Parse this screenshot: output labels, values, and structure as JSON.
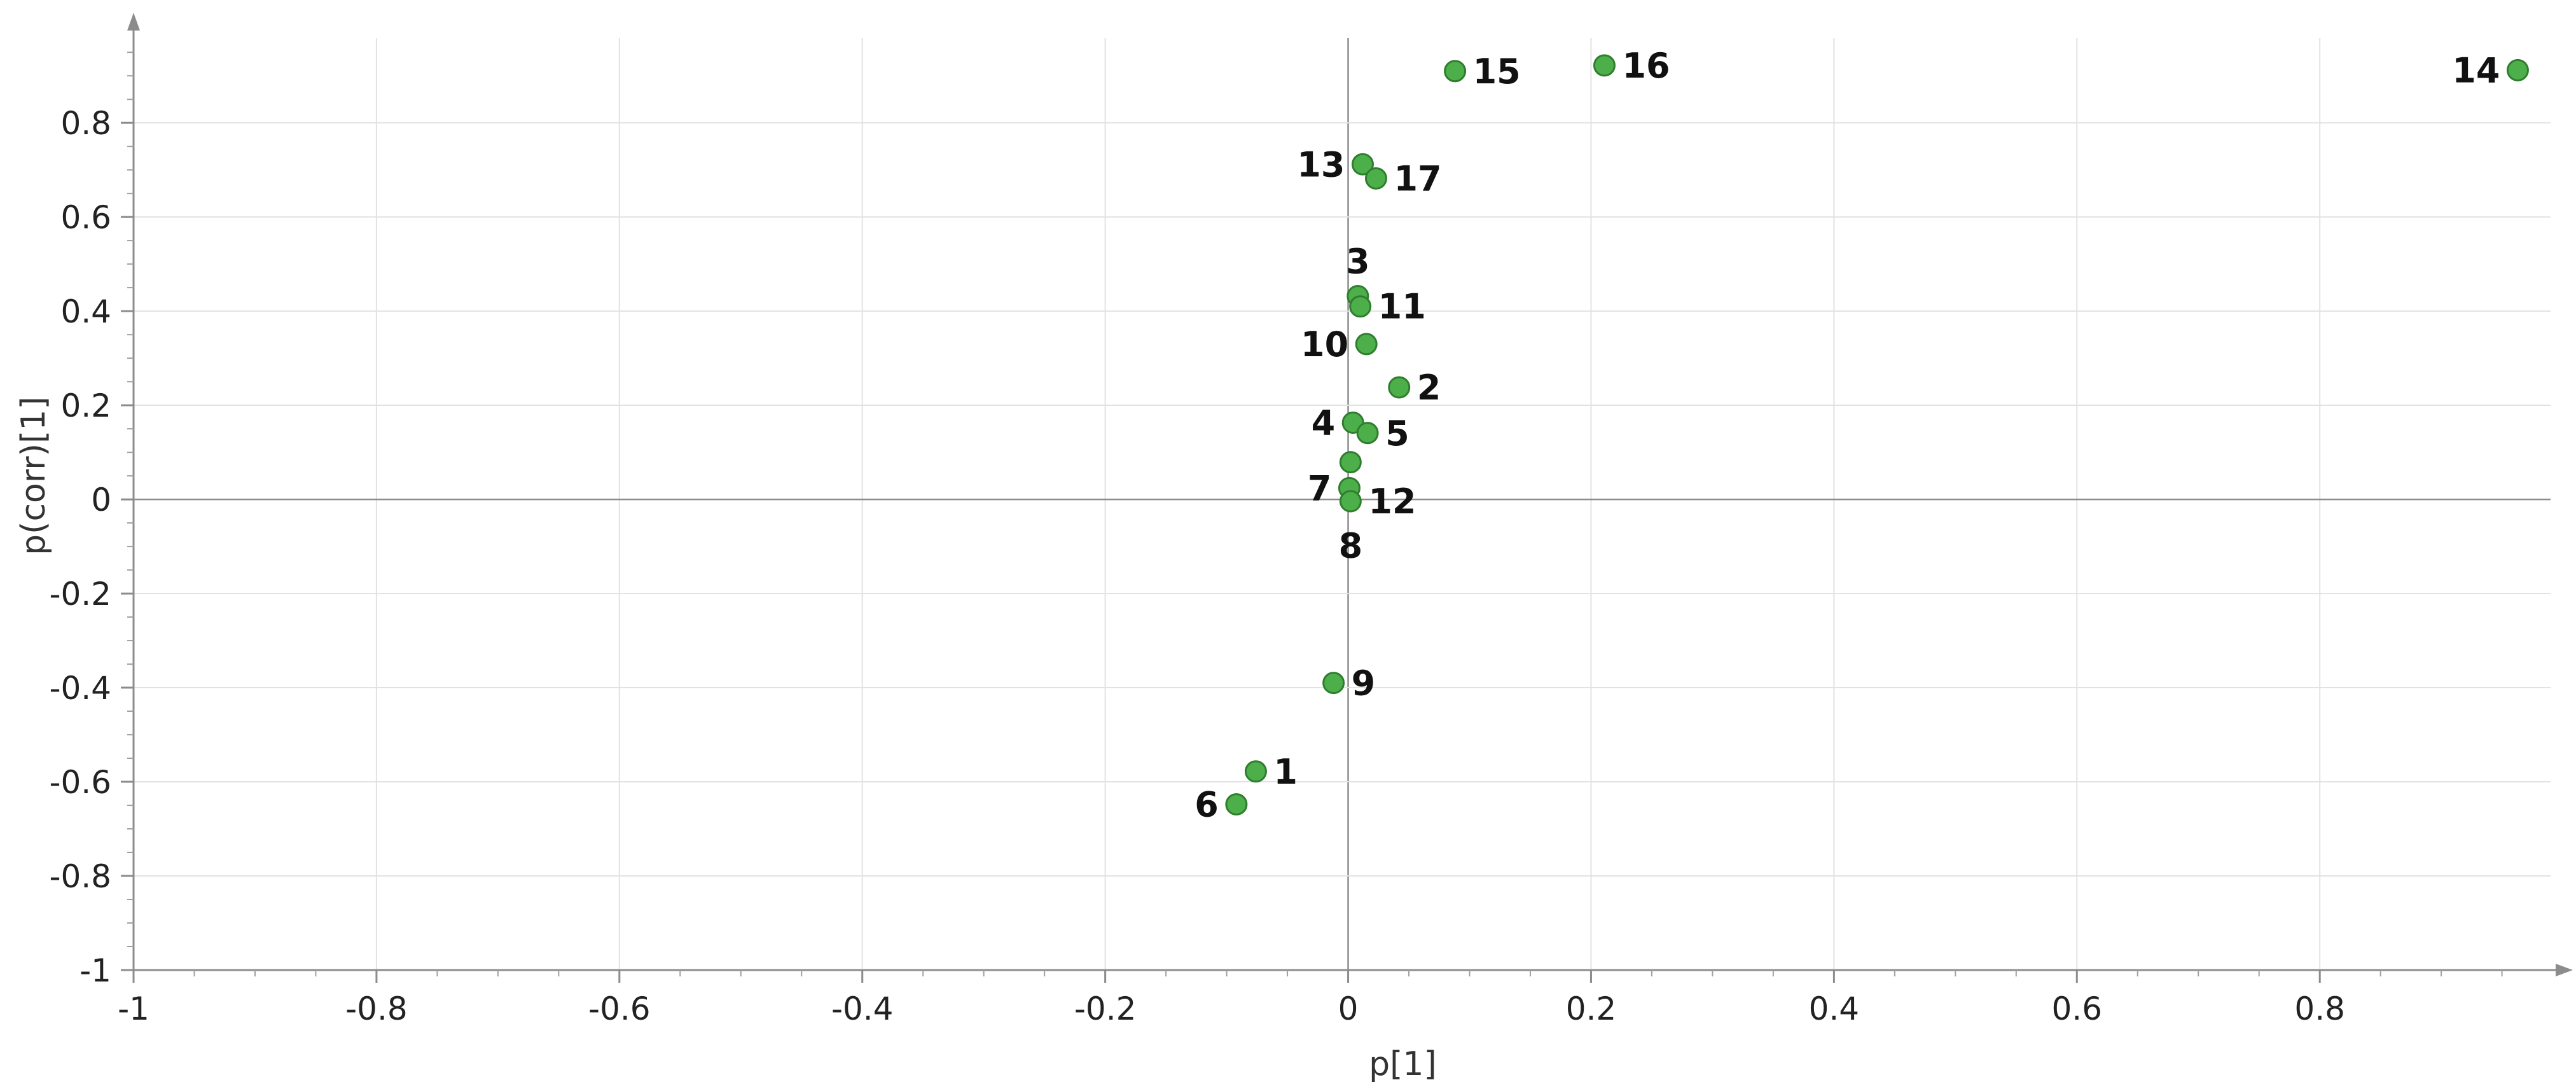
{
  "chart_data": {
    "type": "scatter",
    "xlabel": "p[1]",
    "ylabel": "p(corr)[1]",
    "xlim": [
      -1,
      1
    ],
    "ylim": [
      -1,
      1
    ],
    "grid": true,
    "x_ticks": [
      {
        "value": -1,
        "label": "-1"
      },
      {
        "value": -0.8,
        "label": "-0.8"
      },
      {
        "value": -0.6,
        "label": "-0.6"
      },
      {
        "value": -0.4,
        "label": "-0.4"
      },
      {
        "value": -0.2,
        "label": "-0.2"
      },
      {
        "value": 0,
        "label": "0"
      },
      {
        "value": 0.2,
        "label": "0.2"
      },
      {
        "value": 0.4,
        "label": "0.4"
      },
      {
        "value": 0.6,
        "label": "0.6"
      },
      {
        "value": 0.8,
        "label": "0.8"
      }
    ],
    "y_ticks": [
      {
        "value": -1,
        "label": "-1"
      },
      {
        "value": -0.8,
        "label": "-0.8"
      },
      {
        "value": -0.6,
        "label": "-0.6"
      },
      {
        "value": -0.4,
        "label": "-0.4"
      },
      {
        "value": -0.2,
        "label": "-0.2"
      },
      {
        "value": 0,
        "label": "0"
      },
      {
        "value": 0.2,
        "label": "0.2"
      },
      {
        "value": 0.4,
        "label": "0.4"
      },
      {
        "value": 0.6,
        "label": "0.6"
      },
      {
        "value": 0.8,
        "label": "0.8"
      }
    ],
    "point_color": "#4daf4a",
    "points": [
      {
        "label": "1",
        "x": -0.076,
        "y": -0.578,
        "side": "right"
      },
      {
        "label": "2",
        "x": 0.042,
        "y": 0.238,
        "side": "right"
      },
      {
        "label": "3",
        "x": 0.008,
        "y": 0.432,
        "side": "above"
      },
      {
        "label": "4",
        "x": 0.004,
        "y": 0.163,
        "side": "left"
      },
      {
        "label": "5",
        "x": 0.016,
        "y": 0.141,
        "side": "right"
      },
      {
        "label": "6",
        "x": -0.092,
        "y": -0.648,
        "side": "left"
      },
      {
        "label": "7",
        "x": 0.001,
        "y": 0.024,
        "side": "left"
      },
      {
        "label": "8",
        "x": 0.002,
        "y": 0.079,
        "side": "below"
      },
      {
        "label": "9",
        "x": -0.012,
        "y": -0.39,
        "side": "right"
      },
      {
        "label": "10",
        "x": 0.015,
        "y": 0.33,
        "side": "left"
      },
      {
        "label": "11",
        "x": 0.01,
        "y": 0.41,
        "side": "right"
      },
      {
        "label": "12",
        "x": 0.002,
        "y": -0.004,
        "side": "right"
      },
      {
        "label": "13",
        "x": 0.012,
        "y": 0.712,
        "side": "left"
      },
      {
        "label": "14",
        "x": 0.963,
        "y": 0.912,
        "side": "left"
      },
      {
        "label": "15",
        "x": 0.088,
        "y": 0.91,
        "side": "right"
      },
      {
        "label": "16",
        "x": 0.211,
        "y": 0.922,
        "side": "right"
      },
      {
        "label": "17",
        "x": 0.023,
        "y": 0.682,
        "side": "right"
      }
    ]
  }
}
